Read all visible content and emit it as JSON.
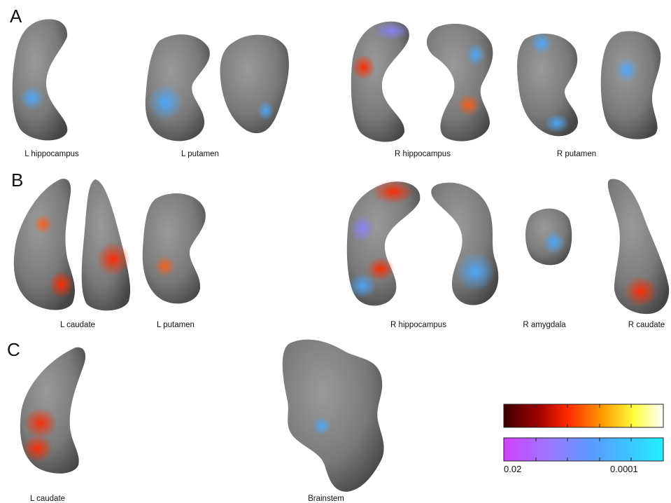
{
  "panels": [
    {
      "letter": "A",
      "labels": [
        "L hippocampus",
        "L putamen",
        "R hippocampus",
        "R putamen"
      ]
    },
    {
      "letter": "B",
      "labels": [
        "L caudate",
        "L putamen",
        "R hippocampus",
        "R amygdala",
        "R caudate"
      ]
    },
    {
      "letter": "C",
      "labels": [
        "L caudate",
        "Brainstem"
      ]
    }
  ],
  "colorbar": {
    "top_colors": [
      "#3a0000",
      "#a00000",
      "#ff2a00",
      "#ff9a00",
      "#ffff40",
      "#ffffff"
    ],
    "bottom_colors": [
      "#d040ff",
      "#9a7aff",
      "#5a9aff",
      "#3ac8ff",
      "#20f0ff"
    ],
    "tick_min": "0.02",
    "tick_max": "0.0001"
  }
}
